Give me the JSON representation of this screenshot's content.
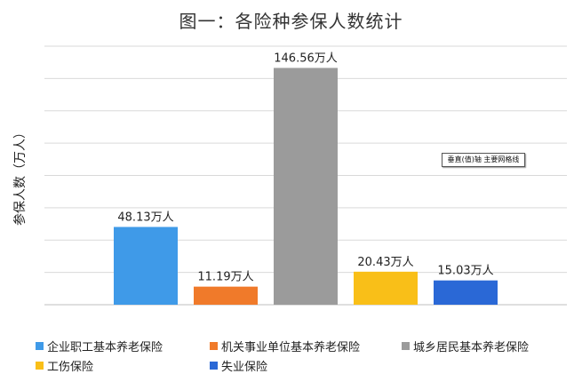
{
  "chart_data": {
    "type": "bar",
    "title": "图一：各险种参保人数统计",
    "ylabel": "参保人数（万人）",
    "xlabel": "",
    "ylim": [
      0,
      160
    ],
    "grid": true,
    "legend_position": "bottom",
    "categories": [
      "企业职工基本养老保险",
      "机关事业单位基本养老保险",
      "城乡居民基本养老保险",
      "工伤保险",
      "失业保险"
    ],
    "values": [
      48.13,
      11.19,
      146.56,
      20.43,
      15.03
    ],
    "data_labels": [
      "48.13万人",
      "11.19万人",
      "146.56万人",
      "20.43万人",
      "15.03万人"
    ],
    "colors": [
      "#3f9ae8",
      "#f07a2a",
      "#9b9b9b",
      "#f9bf18",
      "#2a68d6"
    ],
    "annotation": "垂直(值)轴 主要网格线"
  }
}
